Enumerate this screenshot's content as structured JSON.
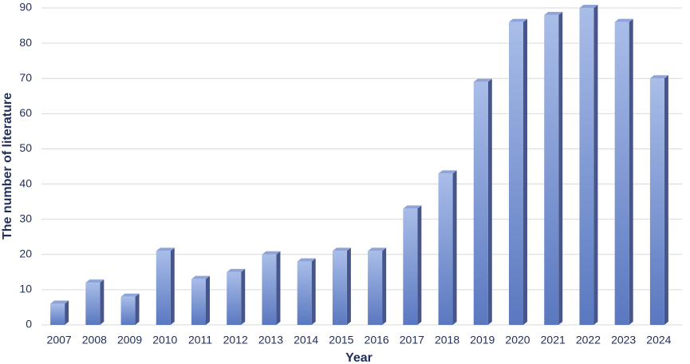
{
  "chart_data": {
    "type": "bar",
    "x_label": "Year",
    "y_label": "The number of literature",
    "categories": [
      "2007",
      "2008",
      "2009",
      "2010",
      "2011",
      "2012",
      "2013",
      "2014",
      "2015",
      "2016",
      "2017",
      "2018",
      "2019",
      "2020",
      "2021",
      "2022",
      "2023",
      "2024"
    ],
    "values": [
      6,
      12,
      8,
      21,
      13,
      15,
      20,
      18,
      21,
      21,
      33,
      43,
      69,
      86,
      88,
      90,
      86,
      70
    ],
    "color": "#6f8fd0",
    "ylim": [
      0,
      90
    ],
    "yticks": [
      0,
      10,
      20,
      30,
      40,
      50,
      60,
      70,
      80,
      90
    ],
    "grid": true
  }
}
